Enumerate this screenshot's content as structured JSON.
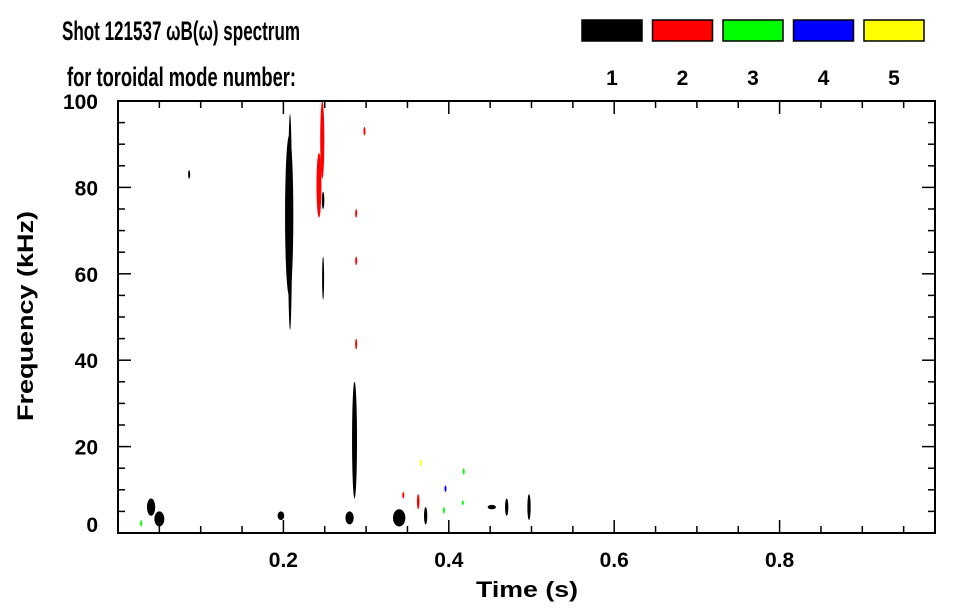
{
  "chart_data": {
    "type": "heatmap",
    "title": "Shot 121537 ωB(ω) spectrum",
    "subtitle": "for toroidal mode number:",
    "xlabel": "Time (s)",
    "ylabel": "Frequency (kHz)",
    "xlim": [
      0,
      0.99
    ],
    "ylim": [
      0,
      100
    ],
    "x_ticks": [
      0.2,
      0.4,
      0.6,
      0.8
    ],
    "x_tick_labels": [
      "0.2",
      "0.4",
      "0.6",
      "0.8"
    ],
    "y_ticks": [
      0,
      20,
      40,
      60,
      80,
      100
    ],
    "y_tick_labels": [
      "0",
      "20",
      "40",
      "60",
      "80",
      "100"
    ],
    "legend": {
      "placement": "top-right",
      "entries": [
        {
          "label": "1",
          "color": "#000000"
        },
        {
          "label": "2",
          "color": "#ff0000"
        },
        {
          "label": "3",
          "color": "#00ff00"
        },
        {
          "label": "4",
          "color": "#0000ff"
        },
        {
          "label": "5",
          "color": "#ffff00"
        }
      ]
    },
    "features": [
      {
        "mode": 1,
        "t": 0.207,
        "dt": 0.01,
        "f": [
          55,
          92
        ]
      },
      {
        "mode": 1,
        "t": 0.208,
        "dt": 0.005,
        "f": [
          47,
          97
        ]
      },
      {
        "mode": 2,
        "t": 0.243,
        "dt": 0.006,
        "f": [
          73,
          88
        ]
      },
      {
        "mode": 2,
        "t": 0.247,
        "dt": 0.005,
        "f": [
          82,
          100
        ]
      },
      {
        "mode": 1,
        "t": 0.248,
        "dt": 0.003,
        "f": [
          75,
          79
        ]
      },
      {
        "mode": 1,
        "t": 0.248,
        "dt": 0.002,
        "f": [
          54,
          64
        ]
      },
      {
        "mode": 1,
        "t": 0.086,
        "dt": 0.002,
        "f": [
          82,
          84
        ]
      },
      {
        "mode": 2,
        "t": 0.298,
        "dt": 0.002,
        "f": [
          92,
          94
        ]
      },
      {
        "mode": 2,
        "t": 0.288,
        "dt": 0.0015,
        "f": [
          73,
          75
        ]
      },
      {
        "mode": 2,
        "t": 0.288,
        "dt": 0.0015,
        "f": [
          62,
          64
        ]
      },
      {
        "mode": 2,
        "t": 0.288,
        "dt": 0.0015,
        "f": [
          42.5,
          45
        ]
      },
      {
        "mode": 1,
        "t": 0.286,
        "dt": 0.006,
        "f": [
          8,
          35
        ]
      },
      {
        "mode": 1,
        "t": 0.04,
        "dt": 0.01,
        "f": [
          4,
          8
        ]
      },
      {
        "mode": 1,
        "t": 0.05,
        "dt": 0.012,
        "f": [
          1.5,
          5
        ]
      },
      {
        "mode": 1,
        "t": 0.197,
        "dt": 0.008,
        "f": [
          3,
          5
        ]
      },
      {
        "mode": 1,
        "t": 0.28,
        "dt": 0.01,
        "f": [
          2,
          5
        ]
      },
      {
        "mode": 1,
        "t": 0.34,
        "dt": 0.015,
        "f": [
          1.5,
          5.5
        ]
      },
      {
        "mode": 2,
        "t": 0.363,
        "dt": 0.003,
        "f": [
          5.5,
          9
        ]
      },
      {
        "mode": 1,
        "t": 0.372,
        "dt": 0.004,
        "f": [
          2,
          6
        ]
      },
      {
        "mode": 2,
        "t": 0.345,
        "dt": 0.002,
        "f": [
          8,
          9.5
        ]
      },
      {
        "mode": 4,
        "t": 0.396,
        "dt": 0.002,
        "f": [
          9.5,
          11
        ]
      },
      {
        "mode": 3,
        "t": 0.394,
        "dt": 0.0015,
        "f": [
          4.5,
          6
        ]
      },
      {
        "mode": 3,
        "t": 0.418,
        "dt": 0.0015,
        "f": [
          13.5,
          15
        ]
      },
      {
        "mode": 3,
        "t": 0.417,
        "dt": 0.0015,
        "f": [
          6.5,
          7.5
        ]
      },
      {
        "mode": 5,
        "t": 0.366,
        "dt": 0.0015,
        "f": [
          15.5,
          17
        ]
      },
      {
        "mode": 3,
        "t": 0.028,
        "dt": 0.0015,
        "f": [
          1.5,
          3
        ]
      },
      {
        "mode": 1,
        "t": 0.452,
        "dt": 0.01,
        "f": [
          5.5,
          6.5
        ]
      },
      {
        "mode": 1,
        "t": 0.47,
        "dt": 0.004,
        "f": [
          4,
          8
        ]
      },
      {
        "mode": 1,
        "t": 0.497,
        "dt": 0.004,
        "f": [
          3,
          9
        ]
      }
    ]
  }
}
